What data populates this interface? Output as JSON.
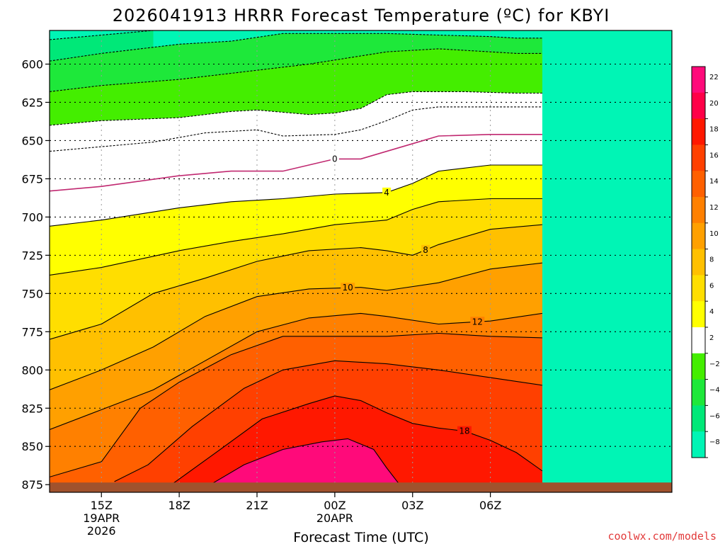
{
  "title": "2026041913 HRRR Forecast Temperature (ºC) for KBYI",
  "credit": "coolwx.com/models",
  "chart_data": {
    "type": "heatmap",
    "title": "2026041913 HRRR Forecast Temperature (ºC) for KBYI",
    "xlabel": "Forecast Time (UTC)",
    "ylabel": "",
    "x_range_hours": [
      13,
      37
    ],
    "y_range_hpa": [
      578,
      880
    ],
    "y_ticks": [
      600,
      625,
      650,
      675,
      700,
      725,
      750,
      775,
      800,
      825,
      850,
      875
    ],
    "x_ticks": [
      {
        "hour": 15,
        "lines": [
          "15Z",
          "19APR",
          "2026"
        ]
      },
      {
        "hour": 18,
        "lines": [
          "18Z"
        ]
      },
      {
        "hour": 21,
        "lines": [
          "21Z"
        ]
      },
      {
        "hour": 24,
        "lines": [
          "00Z",
          "20APR"
        ]
      },
      {
        "hour": 27,
        "lines": [
          "03Z"
        ]
      },
      {
        "hour": 30,
        "lines": [
          "06Z"
        ]
      }
    ],
    "grid": true,
    "surface_pressure_hpa": 875,
    "colorbar": {
      "labels": [
        "22",
        "20",
        "18",
        "16",
        "14",
        "12",
        "10",
        "8",
        "6",
        "4",
        "2",
        "−2",
        "−4",
        "−6",
        "−8"
      ],
      "colors": [
        "#ff0a7a",
        "#ff0048",
        "#ff1800",
        "#ff4000",
        "#ff6000",
        "#ff8000",
        "#ffa000",
        "#ffc000",
        "#ffde00",
        "#ffff00",
        "#ffffff",
        "#44ee00",
        "#1ee83a",
        "#00e878",
        "#00f5b5"
      ]
    },
    "contours": [
      {
        "value": -8,
        "dashed": true,
        "points": [
          [
            13,
            584
          ],
          [
            15,
            581
          ],
          [
            17,
            578
          ]
        ]
      },
      {
        "value": -6,
        "dashed": true,
        "points": [
          [
            13,
            598
          ],
          [
            15,
            593
          ],
          [
            18,
            587
          ],
          [
            20,
            585
          ],
          [
            22,
            580
          ],
          [
            26,
            580
          ],
          [
            28,
            581
          ],
          [
            30,
            582
          ],
          [
            31,
            583
          ],
          [
            32,
            583
          ]
        ]
      },
      {
        "value": -4,
        "dashed": true,
        "points": [
          [
            13,
            618
          ],
          [
            15,
            614
          ],
          [
            18,
            610
          ],
          [
            20,
            606
          ],
          [
            23,
            600
          ],
          [
            26,
            592
          ],
          [
            28,
            590
          ],
          [
            30,
            592
          ],
          [
            31,
            593
          ],
          [
            32,
            593
          ]
        ]
      },
      {
        "value": -2,
        "dashed": true,
        "points": [
          [
            13,
            640
          ],
          [
            15,
            637
          ],
          [
            18,
            635
          ],
          [
            20,
            631
          ],
          [
            21,
            630
          ],
          [
            23,
            633
          ],
          [
            24,
            632
          ],
          [
            25,
            629
          ],
          [
            26,
            620
          ],
          [
            27,
            618
          ],
          [
            29,
            618
          ],
          [
            31,
            619
          ],
          [
            32,
            619
          ]
        ]
      },
      {
        "value": 2,
        "dashed": true,
        "points": [
          [
            13,
            657
          ],
          [
            15,
            654
          ],
          [
            17,
            651
          ],
          [
            19,
            645
          ],
          [
            21,
            643
          ],
          [
            22,
            647
          ],
          [
            24,
            646
          ],
          [
            25,
            643
          ],
          [
            26,
            637
          ],
          [
            27,
            630
          ],
          [
            28,
            628
          ],
          [
            30,
            628
          ],
          [
            32,
            628
          ]
        ]
      },
      {
        "value": 0,
        "dashed": false,
        "color": "#c02870",
        "label": "0",
        "label_hour": 24,
        "points": [
          [
            13,
            683
          ],
          [
            15,
            680
          ],
          [
            18,
            673
          ],
          [
            20,
            670
          ],
          [
            22,
            670
          ],
          [
            24,
            662
          ],
          [
            25,
            662
          ],
          [
            27,
            652
          ],
          [
            28,
            647
          ],
          [
            30,
            646
          ],
          [
            32,
            646
          ]
        ]
      },
      {
        "value": 4,
        "dashed": false,
        "label": "4",
        "label_hour": 26,
        "points": [
          [
            13,
            706
          ],
          [
            15,
            702
          ],
          [
            18,
            694
          ],
          [
            20,
            690
          ],
          [
            22,
            688
          ],
          [
            24,
            685
          ],
          [
            26,
            684
          ],
          [
            27,
            678
          ],
          [
            28,
            670
          ],
          [
            30,
            666
          ],
          [
            32,
            666
          ]
        ]
      },
      {
        "value": 6,
        "dashed": false,
        "points": [
          [
            13,
            738
          ],
          [
            15,
            733
          ],
          [
            18,
            722
          ],
          [
            20,
            716
          ],
          [
            22,
            711
          ],
          [
            24,
            705
          ],
          [
            26,
            702
          ],
          [
            27,
            695
          ],
          [
            28,
            690
          ],
          [
            30,
            688
          ],
          [
            32,
            688
          ]
        ]
      },
      {
        "value": 8,
        "dashed": false,
        "label": "8",
        "label_hour": 27.5,
        "points": [
          [
            13,
            780
          ],
          [
            15,
            770
          ],
          [
            17,
            750
          ],
          [
            19,
            740
          ],
          [
            21,
            729
          ],
          [
            23,
            722
          ],
          [
            25,
            720
          ],
          [
            26,
            722
          ],
          [
            27,
            725
          ],
          [
            28,
            718
          ],
          [
            30,
            708
          ],
          [
            32,
            705
          ]
        ]
      },
      {
        "value": 10,
        "dashed": false,
        "label": "10",
        "label_hour": 24.5,
        "points": [
          [
            13,
            813
          ],
          [
            15,
            800
          ],
          [
            17,
            785
          ],
          [
            19,
            765
          ],
          [
            21,
            752
          ],
          [
            23,
            747
          ],
          [
            25,
            746
          ],
          [
            26,
            748
          ],
          [
            28,
            743
          ],
          [
            30,
            734
          ],
          [
            32,
            730
          ]
        ]
      },
      {
        "value": 12,
        "dashed": false,
        "label": "12",
        "label_hour": 29.5,
        "points": [
          [
            13,
            839
          ],
          [
            15,
            826
          ],
          [
            17,
            813
          ],
          [
            19,
            794
          ],
          [
            21,
            775
          ],
          [
            23,
            766
          ],
          [
            25,
            763
          ],
          [
            26,
            765
          ],
          [
            28,
            770
          ],
          [
            30,
            768
          ],
          [
            32,
            763
          ]
        ]
      },
      {
        "value": 14,
        "dashed": false,
        "points": [
          [
            13,
            870
          ],
          [
            15,
            860
          ],
          [
            16.5,
            825
          ],
          [
            18,
            808
          ],
          [
            20,
            790
          ],
          [
            22,
            778
          ],
          [
            24,
            778
          ],
          [
            26,
            778
          ],
          [
            28,
            776
          ],
          [
            30,
            778
          ],
          [
            32,
            779
          ]
        ]
      },
      {
        "value": 16,
        "dashed": false,
        "points": [
          [
            15.5,
            873
          ],
          [
            16.8,
            862
          ],
          [
            18.5,
            837
          ],
          [
            20.5,
            812
          ],
          [
            22,
            800
          ],
          [
            24,
            794
          ],
          [
            26,
            796
          ],
          [
            28,
            800
          ],
          [
            30,
            805
          ],
          [
            32,
            810
          ]
        ]
      },
      {
        "value": 18,
        "dashed": false,
        "label": "18",
        "label_hour": 29,
        "points": [
          [
            17.7,
            875
          ],
          [
            19.5,
            853
          ],
          [
            21.2,
            832
          ],
          [
            23,
            822
          ],
          [
            24,
            817
          ],
          [
            25,
            820
          ],
          [
            26,
            828
          ],
          [
            27,
            835
          ],
          [
            28,
            838
          ],
          [
            29,
            840
          ],
          [
            30,
            846
          ],
          [
            31,
            854
          ],
          [
            31.5,
            860
          ],
          [
            32,
            866
          ]
        ]
      },
      {
        "value": 20,
        "dashed": false,
        "points": [
          [
            19.2,
            875
          ],
          [
            20.5,
            862
          ],
          [
            22,
            852
          ],
          [
            23.5,
            847
          ],
          [
            24.5,
            845
          ],
          [
            25.5,
            852
          ],
          [
            26,
            864
          ],
          [
            26.5,
            875
          ]
        ]
      }
    ]
  }
}
